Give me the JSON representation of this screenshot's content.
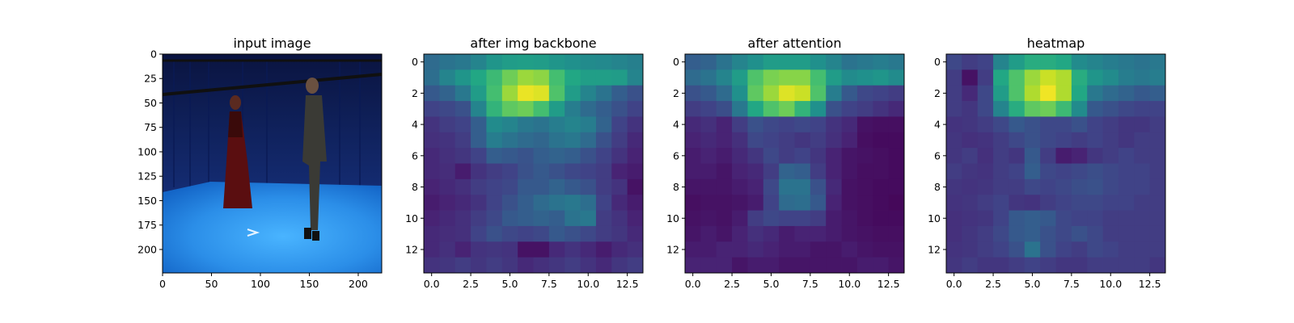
{
  "chart_data": [
    {
      "type": "image",
      "title": "input image",
      "xlim": [
        0,
        224
      ],
      "ylim": [
        0,
        224
      ],
      "x_ticks": [
        "0",
        "50",
        "100",
        "150",
        "200"
      ],
      "y_ticks": [
        "0",
        "25",
        "50",
        "75",
        "100",
        "125",
        "150",
        "175",
        "200"
      ],
      "scene": "Two people standing in a blue motion capture studio with a blue-lit floor"
    },
    {
      "type": "heatmap",
      "title": "after img backbone",
      "colormap": "viridis",
      "x_ticks": [
        "0.0",
        "2.5",
        "5.0",
        "7.5",
        "10.0",
        "12.5"
      ],
      "y_ticks": [
        "0",
        "2",
        "4",
        "6",
        "8",
        "10",
        "12"
      ],
      "grid": [
        [
          0.35,
          0.38,
          0.4,
          0.45,
          0.52,
          0.55,
          0.56,
          0.55,
          0.52,
          0.5,
          0.48,
          0.47,
          0.45,
          0.43
        ],
        [
          0.36,
          0.45,
          0.52,
          0.6,
          0.68,
          0.78,
          0.85,
          0.83,
          0.7,
          0.6,
          0.56,
          0.56,
          0.55,
          0.45
        ],
        [
          0.28,
          0.32,
          0.4,
          0.55,
          0.7,
          0.85,
          0.97,
          0.95,
          0.72,
          0.55,
          0.45,
          0.38,
          0.3,
          0.25
        ],
        [
          0.2,
          0.22,
          0.25,
          0.45,
          0.65,
          0.75,
          0.78,
          0.7,
          0.55,
          0.42,
          0.35,
          0.3,
          0.25,
          0.2
        ],
        [
          0.15,
          0.18,
          0.2,
          0.3,
          0.48,
          0.45,
          0.4,
          0.38,
          0.42,
          0.45,
          0.42,
          0.32,
          0.2,
          0.15
        ],
        [
          0.14,
          0.15,
          0.18,
          0.3,
          0.42,
          0.38,
          0.35,
          0.33,
          0.38,
          0.4,
          0.35,
          0.25,
          0.18,
          0.12
        ],
        [
          0.12,
          0.14,
          0.16,
          0.2,
          0.3,
          0.28,
          0.26,
          0.3,
          0.32,
          0.3,
          0.25,
          0.2,
          0.15,
          0.1
        ],
        [
          0.12,
          0.13,
          0.08,
          0.15,
          0.18,
          0.2,
          0.25,
          0.28,
          0.25,
          0.22,
          0.2,
          0.18,
          0.1,
          0.08
        ],
        [
          0.1,
          0.12,
          0.14,
          0.18,
          0.2,
          0.22,
          0.28,
          0.28,
          0.32,
          0.28,
          0.25,
          0.18,
          0.15,
          0.05
        ],
        [
          0.08,
          0.1,
          0.12,
          0.15,
          0.2,
          0.25,
          0.3,
          0.35,
          0.38,
          0.4,
          0.36,
          0.2,
          0.12,
          0.08
        ],
        [
          0.1,
          0.12,
          0.14,
          0.18,
          0.22,
          0.28,
          0.3,
          0.32,
          0.3,
          0.38,
          0.4,
          0.18,
          0.15,
          0.1
        ],
        [
          0.12,
          0.13,
          0.14,
          0.2,
          0.25,
          0.22,
          0.2,
          0.22,
          0.28,
          0.25,
          0.22,
          0.18,
          0.16,
          0.12
        ],
        [
          0.12,
          0.14,
          0.1,
          0.15,
          0.16,
          0.15,
          0.05,
          0.05,
          0.12,
          0.15,
          0.12,
          0.08,
          0.12,
          0.14
        ],
        [
          0.15,
          0.16,
          0.18,
          0.16,
          0.18,
          0.16,
          0.12,
          0.14,
          0.16,
          0.18,
          0.15,
          0.12,
          0.16,
          0.18
        ]
      ]
    },
    {
      "type": "heatmap",
      "title": "after attention",
      "colormap": "viridis",
      "x_ticks": [
        "0.0",
        "2.5",
        "5.0",
        "7.5",
        "10.0",
        "12.5"
      ],
      "y_ticks": [
        "0",
        "2",
        "4",
        "6",
        "8",
        "10",
        "12"
      ],
      "grid": [
        [
          0.3,
          0.32,
          0.38,
          0.45,
          0.5,
          0.55,
          0.55,
          0.55,
          0.5,
          0.45,
          0.38,
          0.4,
          0.42,
          0.4
        ],
        [
          0.35,
          0.38,
          0.45,
          0.55,
          0.72,
          0.8,
          0.82,
          0.82,
          0.7,
          0.55,
          0.48,
          0.5,
          0.52,
          0.48
        ],
        [
          0.25,
          0.28,
          0.35,
          0.5,
          0.75,
          0.85,
          0.95,
          0.92,
          0.72,
          0.42,
          0.28,
          0.22,
          0.2,
          0.18
        ],
        [
          0.18,
          0.2,
          0.24,
          0.4,
          0.6,
          0.72,
          0.78,
          0.65,
          0.5,
          0.25,
          0.2,
          0.18,
          0.15,
          0.12
        ],
        [
          0.12,
          0.14,
          0.1,
          0.18,
          0.25,
          0.22,
          0.2,
          0.22,
          0.2,
          0.15,
          0.12,
          0.05,
          0.04,
          0.04
        ],
        [
          0.1,
          0.12,
          0.1,
          0.14,
          0.22,
          0.2,
          0.18,
          0.16,
          0.18,
          0.14,
          0.1,
          0.04,
          0.03,
          0.03
        ],
        [
          0.08,
          0.1,
          0.08,
          0.12,
          0.16,
          0.22,
          0.18,
          0.2,
          0.16,
          0.1,
          0.06,
          0.05,
          0.04,
          0.03
        ],
        [
          0.08,
          0.08,
          0.06,
          0.1,
          0.12,
          0.18,
          0.32,
          0.3,
          0.18,
          0.1,
          0.06,
          0.04,
          0.04,
          0.03
        ],
        [
          0.06,
          0.06,
          0.06,
          0.08,
          0.1,
          0.22,
          0.38,
          0.38,
          0.25,
          0.12,
          0.05,
          0.04,
          0.03,
          0.03
        ],
        [
          0.04,
          0.05,
          0.05,
          0.06,
          0.08,
          0.2,
          0.35,
          0.36,
          0.28,
          0.1,
          0.05,
          0.04,
          0.03,
          0.02
        ],
        [
          0.05,
          0.06,
          0.05,
          0.08,
          0.18,
          0.22,
          0.2,
          0.2,
          0.18,
          0.08,
          0.06,
          0.04,
          0.03,
          0.03
        ],
        [
          0.06,
          0.08,
          0.06,
          0.1,
          0.14,
          0.12,
          0.08,
          0.1,
          0.1,
          0.08,
          0.06,
          0.05,
          0.04,
          0.04
        ],
        [
          0.08,
          0.08,
          0.1,
          0.1,
          0.12,
          0.1,
          0.08,
          0.08,
          0.06,
          0.06,
          0.08,
          0.06,
          0.05,
          0.05
        ],
        [
          0.1,
          0.1,
          0.1,
          0.06,
          0.08,
          0.08,
          0.06,
          0.06,
          0.06,
          0.06,
          0.06,
          0.08,
          0.08,
          0.06
        ]
      ]
    },
    {
      "type": "heatmap",
      "title": "heatmap",
      "colormap": "viridis",
      "x_ticks": [
        "0.0",
        "2.5",
        "5.0",
        "7.5",
        "10.0",
        "12.5"
      ],
      "y_ticks": [
        "0",
        "2",
        "4",
        "6",
        "8",
        "10",
        "12"
      ],
      "grid": [
        [
          0.22,
          0.18,
          0.2,
          0.45,
          0.55,
          0.62,
          0.62,
          0.6,
          0.48,
          0.45,
          0.42,
          0.4,
          0.38,
          0.4
        ],
        [
          0.18,
          0.05,
          0.18,
          0.6,
          0.72,
          0.85,
          0.92,
          0.88,
          0.62,
          0.52,
          0.48,
          0.42,
          0.4,
          0.42
        ],
        [
          0.18,
          0.12,
          0.22,
          0.55,
          0.72,
          0.88,
          0.98,
          0.88,
          0.6,
          0.4,
          0.35,
          0.32,
          0.28,
          0.3
        ],
        [
          0.18,
          0.16,
          0.22,
          0.45,
          0.62,
          0.75,
          0.78,
          0.68,
          0.48,
          0.28,
          0.25,
          0.22,
          0.2,
          0.2
        ],
        [
          0.15,
          0.16,
          0.18,
          0.22,
          0.28,
          0.25,
          0.22,
          0.22,
          0.25,
          0.2,
          0.18,
          0.16,
          0.16,
          0.18
        ],
        [
          0.16,
          0.14,
          0.15,
          0.18,
          0.22,
          0.25,
          0.22,
          0.2,
          0.18,
          0.2,
          0.18,
          0.16,
          0.18,
          0.18
        ],
        [
          0.16,
          0.18,
          0.14,
          0.18,
          0.16,
          0.28,
          0.18,
          0.08,
          0.1,
          0.16,
          0.18,
          0.2,
          0.18,
          0.18
        ],
        [
          0.18,
          0.16,
          0.15,
          0.18,
          0.2,
          0.3,
          0.22,
          0.2,
          0.22,
          0.24,
          0.22,
          0.2,
          0.2,
          0.18
        ],
        [
          0.16,
          0.15,
          0.16,
          0.18,
          0.18,
          0.22,
          0.2,
          0.22,
          0.24,
          0.25,
          0.22,
          0.2,
          0.2,
          0.18
        ],
        [
          0.15,
          0.16,
          0.18,
          0.2,
          0.16,
          0.15,
          0.18,
          0.2,
          0.22,
          0.22,
          0.2,
          0.2,
          0.18,
          0.18
        ],
        [
          0.14,
          0.15,
          0.16,
          0.2,
          0.28,
          0.3,
          0.28,
          0.22,
          0.2,
          0.2,
          0.18,
          0.18,
          0.18,
          0.18
        ],
        [
          0.14,
          0.16,
          0.18,
          0.22,
          0.28,
          0.3,
          0.25,
          0.22,
          0.25,
          0.22,
          0.18,
          0.18,
          0.18,
          0.18
        ],
        [
          0.15,
          0.16,
          0.18,
          0.2,
          0.25,
          0.38,
          0.25,
          0.2,
          0.18,
          0.22,
          0.2,
          0.18,
          0.18,
          0.18
        ],
        [
          0.16,
          0.18,
          0.16,
          0.16,
          0.18,
          0.2,
          0.18,
          0.16,
          0.16,
          0.18,
          0.18,
          0.18,
          0.18,
          0.16
        ]
      ]
    }
  ]
}
